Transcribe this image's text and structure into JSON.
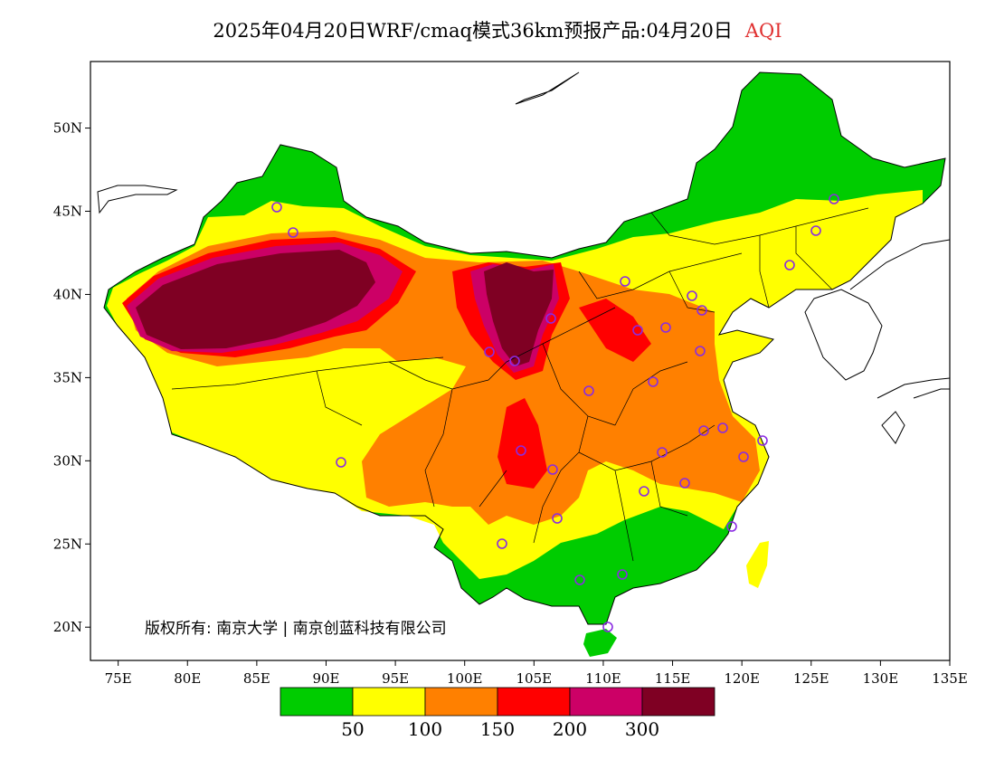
{
  "title": {
    "main": "2025年04月20日WRF/cmaq模式36km预报产品:04月20日",
    "variable": "AQI"
  },
  "map": {
    "lon_range": [
      73,
      135
    ],
    "lat_range": [
      18,
      54
    ],
    "lon_ticks": [
      "75E",
      "80E",
      "85E",
      "90E",
      "95E",
      "100E",
      "105E",
      "110E",
      "115E",
      "120E",
      "125E",
      "130E",
      "135E"
    ],
    "lat_ticks": [
      "20N",
      "25N",
      "30N",
      "35N",
      "40N",
      "45N",
      "50N"
    ],
    "station_marker_color": "#8a2be2"
  },
  "legend": {
    "colors": [
      "#00cc00",
      "#ffff00",
      "#ff8000",
      "#ff0000",
      "#cc0066",
      "#7f0023"
    ],
    "labels": [
      "50",
      "100",
      "150",
      "200",
      "300"
    ]
  },
  "copyright": "版权所有: 南京大学 | 南京创蓝科技有限公司"
}
